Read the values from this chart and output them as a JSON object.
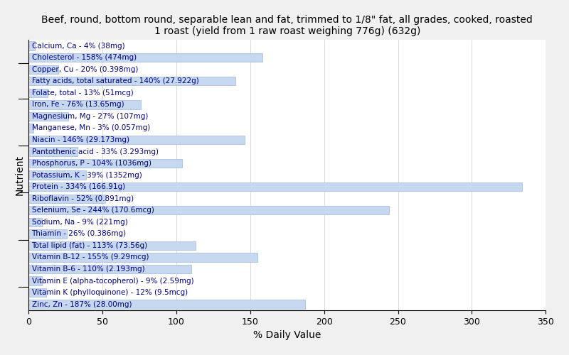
{
  "title": "Beef, round, bottom round, separable lean and fat, trimmed to 1/8\" fat, all grades, cooked, roasted\n1 roast (yield from 1 raw roast weighing 776g) (632g)",
  "xlabel": "% Daily Value",
  "ylabel": "Nutrient",
  "nutrients": [
    {
      "label": "Calcium, Ca - 4% (38mg)",
      "value": 4
    },
    {
      "label": "Cholesterol - 158% (474mg)",
      "value": 158
    },
    {
      "label": "Copper, Cu - 20% (0.398mg)",
      "value": 20
    },
    {
      "label": "Fatty acids, total saturated - 140% (27.922g)",
      "value": 140
    },
    {
      "label": "Folate, total - 13% (51mcg)",
      "value": 13
    },
    {
      "label": "Iron, Fe - 76% (13.65mg)",
      "value": 76
    },
    {
      "label": "Magnesium, Mg - 27% (107mg)",
      "value": 27
    },
    {
      "label": "Manganese, Mn - 3% (0.057mg)",
      "value": 3
    },
    {
      "label": "Niacin - 146% (29.173mg)",
      "value": 146
    },
    {
      "label": "Pantothenic acid - 33% (3.293mg)",
      "value": 33
    },
    {
      "label": "Phosphorus, P - 104% (1036mg)",
      "value": 104
    },
    {
      "label": "Potassium, K - 39% (1352mg)",
      "value": 39
    },
    {
      "label": "Protein - 334% (166.91g)",
      "value": 334
    },
    {
      "label": "Riboflavin - 52% (0.891mg)",
      "value": 52
    },
    {
      "label": "Selenium, Se - 244% (170.6mcg)",
      "value": 244
    },
    {
      "label": "Sodium, Na - 9% (221mg)",
      "value": 9
    },
    {
      "label": "Thiamin - 26% (0.386mg)",
      "value": 26
    },
    {
      "label": "Total lipid (fat) - 113% (73.56g)",
      "value": 113
    },
    {
      "label": "Vitamin B-12 - 155% (9.29mcg)",
      "value": 155
    },
    {
      "label": "Vitamin B-6 - 110% (2.193mg)",
      "value": 110
    },
    {
      "label": "Vitamin E (alpha-tocopherol) - 9% (2.59mg)",
      "value": 9
    },
    {
      "label": "Vitamin K (phylloquinone) - 12% (9.5mcg)",
      "value": 12
    },
    {
      "label": "Zinc, Zn - 187% (28.00mg)",
      "value": 187
    }
  ],
  "bar_color": "#c5d8f0",
  "bar_edge_color": "#a0b8d8",
  "background_color": "#f0f0f0",
  "plot_background_color": "#ffffff",
  "xlim": [
    0,
    350
  ],
  "xticks": [
    0,
    50,
    100,
    150,
    200,
    250,
    300,
    350
  ],
  "title_fontsize": 10,
  "axis_label_fontsize": 10,
  "tick_fontsize": 9,
  "bar_label_fontsize": 7.5,
  "text_color": "#000080"
}
